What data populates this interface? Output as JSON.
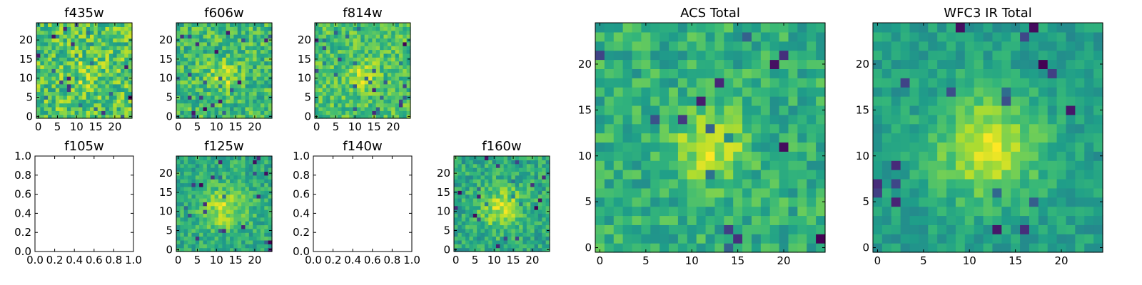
{
  "colormap": "viridis",
  "chart_data": [
    {
      "type": "heatmap",
      "title": "f435w",
      "shape": [
        25,
        25
      ],
      "xlim": [
        0,
        24
      ],
      "ylim": [
        0,
        24
      ],
      "xticks": [
        0,
        5,
        10,
        15,
        20
      ],
      "yticks": [
        0,
        5,
        10,
        15,
        20
      ],
      "has_data": true,
      "noise": 0.55,
      "blob": 0.15,
      "sigma": 3.0,
      "seed": 11,
      "blob_center": [
        12,
        11
      ]
    },
    {
      "type": "heatmap",
      "title": "f606w",
      "shape": [
        25,
        25
      ],
      "xlim": [
        0,
        24
      ],
      "ylim": [
        0,
        24
      ],
      "xticks": [
        0,
        5,
        10,
        15,
        20
      ],
      "yticks": [
        0,
        5,
        10,
        15,
        20
      ],
      "has_data": true,
      "noise": 0.45,
      "blob": 0.3,
      "sigma": 2.5,
      "seed": 23,
      "blob_center": [
        12,
        11
      ]
    },
    {
      "type": "heatmap",
      "title": "f814w",
      "shape": [
        25,
        25
      ],
      "xlim": [
        0,
        24
      ],
      "ylim": [
        0,
        24
      ],
      "xticks": [
        0,
        5,
        10,
        15,
        20
      ],
      "yticks": [
        0,
        5,
        10,
        15,
        20
      ],
      "has_data": true,
      "noise": 0.45,
      "blob": 0.3,
      "sigma": 2.5,
      "seed": 37,
      "blob_center": [
        12,
        11
      ]
    },
    {
      "type": "empty",
      "title": "f105w",
      "xlim": [
        0,
        1
      ],
      "ylim": [
        0,
        1
      ],
      "xticks": [
        "0.0",
        "0.2",
        "0.4",
        "0.6",
        "0.8",
        "1.0"
      ],
      "yticks": [
        "0.0",
        "0.2",
        "0.4",
        "0.6",
        "0.8",
        "1.0"
      ],
      "has_data": false
    },
    {
      "type": "heatmap",
      "title": "f125w",
      "shape": [
        25,
        25
      ],
      "xlim": [
        0,
        24
      ],
      "ylim": [
        0,
        24
      ],
      "xticks": [
        0,
        5,
        10,
        15,
        20
      ],
      "yticks": [
        0,
        5,
        10,
        15,
        20
      ],
      "has_data": true,
      "noise": 0.4,
      "blob": 0.4,
      "sigma": 4.0,
      "seed": 41,
      "blob_center": [
        12,
        11
      ]
    },
    {
      "type": "empty",
      "title": "f140w",
      "xlim": [
        0,
        1
      ],
      "ylim": [
        0,
        1
      ],
      "xticks": [
        "0.0",
        "0.2",
        "0.4",
        "0.6",
        "0.8",
        "1.0"
      ],
      "yticks": [
        "0.0",
        "0.2",
        "0.4",
        "0.6",
        "0.8",
        "1.0"
      ],
      "has_data": false
    },
    {
      "type": "heatmap",
      "title": "f160w",
      "shape": [
        25,
        25
      ],
      "xlim": [
        0,
        24
      ],
      "ylim": [
        0,
        24
      ],
      "xticks": [
        0,
        5,
        10,
        15,
        20
      ],
      "yticks": [
        0,
        5,
        10,
        15,
        20
      ],
      "has_data": true,
      "noise": 0.4,
      "blob": 0.4,
      "sigma": 4.0,
      "seed": 53,
      "blob_center": [
        12,
        11
      ]
    },
    {
      "type": "heatmap",
      "title": "ACS Total",
      "shape": [
        25,
        25
      ],
      "xlim": [
        0,
        24
      ],
      "ylim": [
        0,
        24
      ],
      "xticks": [
        0,
        5,
        10,
        15,
        20
      ],
      "yticks": [
        0,
        5,
        10,
        15,
        20
      ],
      "has_data": true,
      "noise": 0.4,
      "blob": 0.45,
      "sigma": 2.6,
      "seed": 67,
      "blob_center": [
        12,
        11
      ]
    },
    {
      "type": "heatmap",
      "title": "WFC3 IR Total",
      "shape": [
        25,
        25
      ],
      "xlim": [
        0,
        24
      ],
      "ylim": [
        0,
        24
      ],
      "xticks": [
        0,
        5,
        10,
        15,
        20
      ],
      "yticks": [
        0,
        5,
        10,
        15,
        20
      ],
      "has_data": true,
      "noise": 0.3,
      "blob": 0.55,
      "sigma": 4.0,
      "seed": 79,
      "blob_center": [
        12,
        11
      ]
    }
  ]
}
